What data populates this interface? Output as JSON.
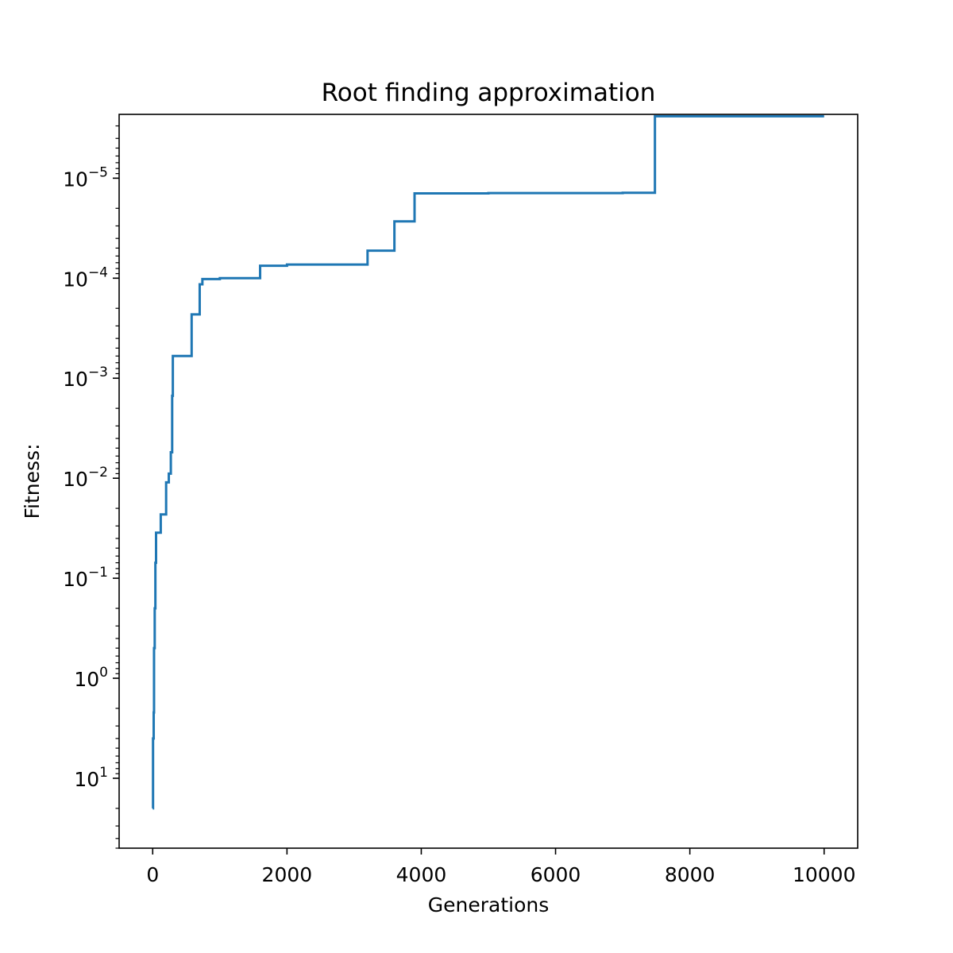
{
  "chart_data": {
    "type": "line",
    "title": "Root finding approximation",
    "xlabel": "Generations",
    "ylabel": "Fitness:",
    "xlim": [
      -500,
      10500
    ],
    "xticks": [
      0,
      2000,
      4000,
      6000,
      8000,
      10000
    ],
    "y_scale": "log",
    "y_axis_inverted": true,
    "ylim": [
      50,
      2.3e-06
    ],
    "yticks": [
      {
        "base": "10",
        "exponent": "1",
        "value": 10
      },
      {
        "base": "10",
        "exponent": "0",
        "value": 1
      },
      {
        "base": "10",
        "exponent": "−1",
        "value": 0.1
      },
      {
        "base": "10",
        "exponent": "−2",
        "value": 0.01
      },
      {
        "base": "10",
        "exponent": "−3",
        "value": 0.001
      },
      {
        "base": "10",
        "exponent": "−4",
        "value": 0.0001
      },
      {
        "base": "10",
        "exponent": "−5",
        "value": 1e-05
      }
    ],
    "grid": false,
    "drawstyle": "steps-post",
    "series": [
      {
        "color": "#1f77b4",
        "points": [
          [
            0,
            20
          ],
          [
            5,
            4
          ],
          [
            15,
            2.2
          ],
          [
            20,
            0.5
          ],
          [
            30,
            0.2
          ],
          [
            40,
            0.07
          ],
          [
            50,
            0.035
          ],
          [
            120,
            0.023
          ],
          [
            200,
            0.011
          ],
          [
            240,
            0.009
          ],
          [
            270,
            0.0055
          ],
          [
            290,
            0.0015
          ],
          [
            300,
            0.0006
          ],
          [
            580,
            0.00023
          ],
          [
            700,
            0.000115
          ],
          [
            740,
            0.000102
          ],
          [
            1000,
            0.0001
          ],
          [
            1600,
            7.5e-05
          ],
          [
            2000,
            7.3e-05
          ],
          [
            3200,
            5.3e-05
          ],
          [
            3600,
            2.7e-05
          ],
          [
            3900,
            1.42e-05
          ],
          [
            5000,
            1.41e-05
          ],
          [
            7000,
            1.4e-05
          ],
          [
            7480,
            2.4e-06
          ],
          [
            10000,
            2.4e-06
          ]
        ]
      }
    ]
  }
}
